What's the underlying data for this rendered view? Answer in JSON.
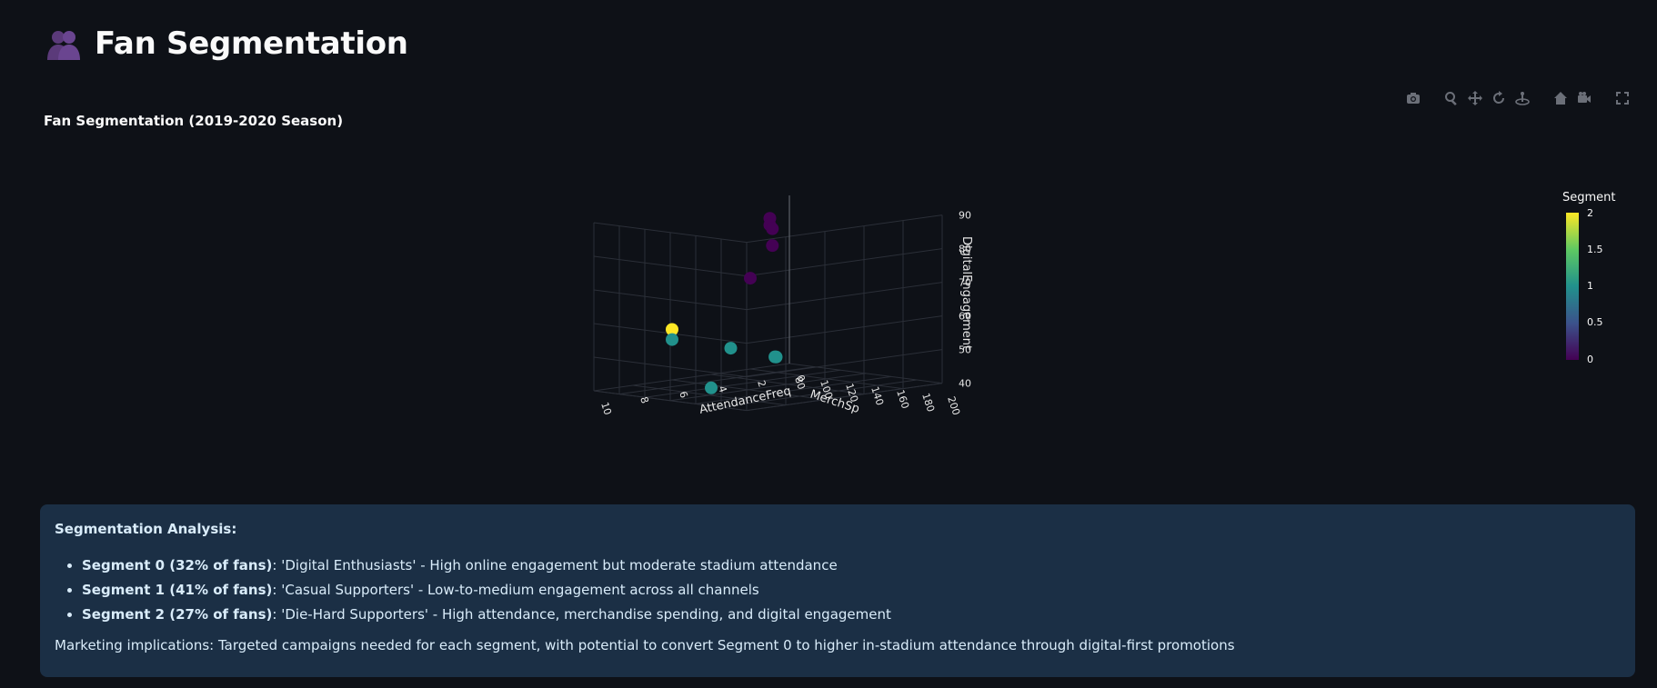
{
  "page": {
    "title": "Fan Segmentation",
    "title_icon": "two-people-silhouette-icon"
  },
  "chart_heading": "Fan Segmentation (2019-2020 Season)",
  "modebar": [
    "camera-icon",
    "zoom-icon",
    "pan-icon",
    "orbit-rotation-icon",
    "turntable-rotation-icon",
    "home-icon",
    "camera-view-icon",
    "fullscreen-icon"
  ],
  "chart_data": {
    "type": "scatter3d",
    "title": "Fan Segmentation (2019-2020 Season)",
    "x_axis": {
      "label": "AttendanceFreq",
      "ticks": [
        "0",
        "2",
        "4",
        "6",
        "8",
        "10"
      ],
      "range": [
        0,
        10
      ]
    },
    "y_axis": {
      "label": "MerchSp",
      "ticks": [
        "80",
        "100",
        "120",
        "140",
        "160",
        "180",
        "200"
      ],
      "range": [
        80,
        200
      ]
    },
    "z_axis": {
      "label": "DigitalEngagement",
      "ticks": [
        "40",
        "50",
        "60",
        "70",
        "80",
        "90"
      ],
      "range": [
        40,
        90
      ]
    },
    "colorbar": {
      "title": "Segment",
      "ticks": [
        "0",
        "0.5",
        "1",
        "1.5",
        "2"
      ],
      "range": [
        0,
        2
      ],
      "colorscale": "viridis"
    },
    "points": [
      {
        "x": 1,
        "y": 80,
        "z": 84,
        "segment": 0
      },
      {
        "x": 1,
        "y": 80,
        "z": 82,
        "segment": 0
      },
      {
        "x": 1,
        "y": 82,
        "z": 81,
        "segment": 0
      },
      {
        "x": 1,
        "y": 82,
        "z": 76,
        "segment": 0
      },
      {
        "x": 2,
        "y": 80,
        "z": 67,
        "segment": 0
      },
      {
        "x": 6,
        "y": 80,
        "z": 55,
        "segment": 2
      },
      {
        "x": 6,
        "y": 80,
        "z": 52,
        "segment": 1
      },
      {
        "x": 3,
        "y": 80,
        "z": 47,
        "segment": 1
      },
      {
        "x": 1,
        "y": 84,
        "z": 43,
        "segment": 1
      },
      {
        "x": 1,
        "y": 85,
        "z": 43,
        "segment": 1
      },
      {
        "x": 4,
        "y": 80,
        "z": 36,
        "segment": 1
      }
    ],
    "segment_colors": {
      "0": "#440154",
      "1": "#21918c",
      "2": "#fde725"
    },
    "grid": true
  },
  "analysis": {
    "title": "Segmentation Analysis:",
    "items": [
      {
        "label": "Segment 0 (32% of fans)",
        "text": ": 'Digital Enthusiasts' - High online engagement but moderate stadium attendance"
      },
      {
        "label": "Segment 1 (41% of fans)",
        "text": ": 'Casual Supporters' - Low-to-medium engagement across all channels"
      },
      {
        "label": "Segment 2 (27% of fans)",
        "text": ": 'Die-Hard Supporters' - High attendance, merchandise spending, and digital engagement"
      }
    ],
    "footer": "Marketing implications: Targeted campaigns needed for each segment, with potential to convert Segment 0 to higher in-stadium attendance through digital-first promotions"
  }
}
